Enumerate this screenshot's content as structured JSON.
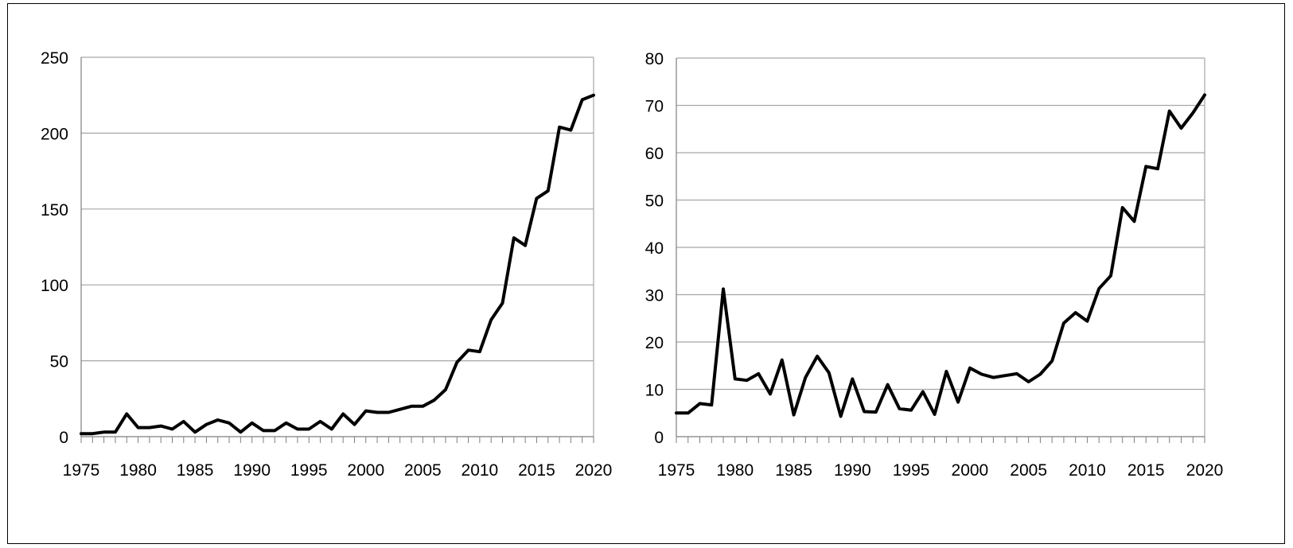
{
  "chart_data": [
    {
      "type": "line",
      "title": "",
      "xlabel": "",
      "ylabel": "",
      "xlim": [
        1975,
        2020
      ],
      "ylim": [
        0,
        250
      ],
      "yticks": [
        0,
        50,
        100,
        150,
        200,
        250
      ],
      "xticks": [
        1975,
        1980,
        1985,
        1990,
        1995,
        2000,
        2005,
        2010,
        2015,
        2020
      ],
      "grid": true,
      "line_color": "#000000",
      "grid_color": "#a6a6a6",
      "series": [
        {
          "x": [
            1975,
            1976,
            1977,
            1978,
            1979,
            1980,
            1981,
            1982,
            1983,
            1984,
            1985,
            1986,
            1987,
            1988,
            1989,
            1990,
            1991,
            1992,
            1993,
            1994,
            1995,
            1996,
            1997,
            1998,
            1999,
            2000,
            2001,
            2002,
            2003,
            2004,
            2005,
            2006,
            2007,
            2008,
            2009,
            2010,
            2011,
            2012,
            2013,
            2014,
            2015,
            2016,
            2017,
            2018,
            2019,
            2020
          ],
          "values": [
            2,
            2,
            3,
            3,
            15,
            6,
            6,
            7,
            5,
            10,
            3,
            8,
            11,
            9,
            3,
            9,
            4,
            4,
            9,
            5,
            5,
            10,
            5,
            15,
            8,
            17,
            16,
            16,
            18,
            20,
            20,
            24,
            31,
            49,
            57,
            56,
            77,
            88,
            131,
            126,
            157,
            162,
            204,
            202,
            222,
            225
          ]
        }
      ]
    },
    {
      "type": "line",
      "title": "",
      "xlabel": "",
      "ylabel": "",
      "xlim": [
        1975,
        2020
      ],
      "ylim": [
        0,
        80
      ],
      "yticks": [
        0,
        10,
        20,
        30,
        40,
        50,
        60,
        70,
        80
      ],
      "xticks": [
        1975,
        1980,
        1985,
        1990,
        1995,
        2000,
        2005,
        2010,
        2015,
        2020
      ],
      "grid": true,
      "line_color": "#000000",
      "grid_color": "#a6a6a6",
      "series": [
        {
          "x": [
            1975,
            1976,
            1977,
            1978,
            1979,
            1980,
            1981,
            1982,
            1983,
            1984,
            1985,
            1986,
            1987,
            1988,
            1989,
            1990,
            1991,
            1992,
            1993,
            1994,
            1995,
            1996,
            1997,
            1998,
            1999,
            2000,
            2001,
            2002,
            2003,
            2004,
            2005,
            2006,
            2007,
            2008,
            2009,
            2010,
            2011,
            2012,
            2013,
            2014,
            2015,
            2016,
            2017,
            2018,
            2019,
            2020
          ],
          "values": [
            5,
            5,
            7,
            6.7,
            31.2,
            12.2,
            11.9,
            13.3,
            9,
            16.2,
            4.6,
            12.5,
            17,
            13.5,
            4.3,
            12.2,
            5.3,
            5.2,
            11,
            5.9,
            5.6,
            9.5,
            4.7,
            13.8,
            7.3,
            14.5,
            13.2,
            12.5,
            12.9,
            13.3,
            11.6,
            13.2,
            16,
            24,
            26.2,
            24.4,
            31.3,
            34,
            48.4,
            45.5,
            57.1,
            56.6,
            68.8,
            65.2,
            68.4,
            72.2
          ]
        }
      ]
    }
  ]
}
